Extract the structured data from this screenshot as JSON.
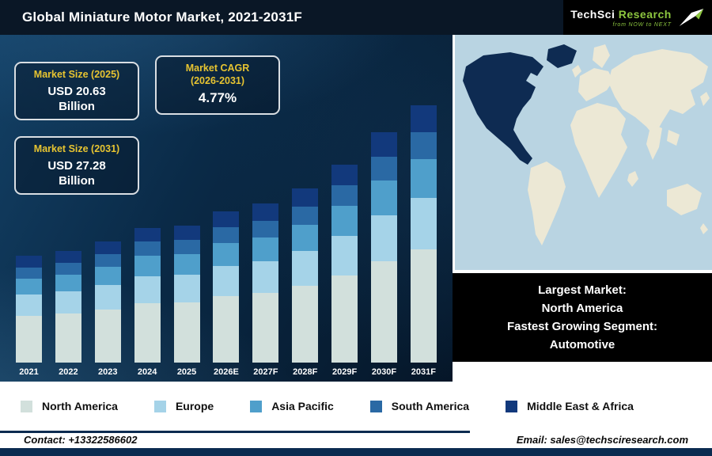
{
  "header": {
    "title": "Global Miniature Motor Market, 2021-2031F",
    "logo": {
      "brand_primary": "TechSci",
      "brand_secondary": " Research",
      "tagline": "from NOW to NEXT"
    }
  },
  "callouts": [
    {
      "title": "Market Size (2025)",
      "value": "USD 20.63",
      "unit": "Billion"
    },
    {
      "title_line1": "Market CAGR",
      "title_line2": "(2026-2031)",
      "value": "4.77%"
    },
    {
      "title": "Market Size (2031)",
      "value": "USD 27.28",
      "unit": "Billion"
    }
  ],
  "chart_data": {
    "type": "bar",
    "subtype": "stacked",
    "title": "Global Miniature Motor Market, 2021-2031F",
    "categories": [
      "2021",
      "2022",
      "2023",
      "2024",
      "2025",
      "2026E",
      "2027F",
      "2028F",
      "2029F",
      "2030F",
      "2031F"
    ],
    "series": [
      {
        "name": "North America",
        "color": "#d2e0dc",
        "values": [
          59,
          62,
          67,
          75,
          76,
          84,
          88,
          97,
          110,
          128,
          143
        ]
      },
      {
        "name": "Europe",
        "color": "#a5d3e8",
        "values": [
          27,
          28,
          31,
          34,
          35,
          38,
          40,
          44,
          50,
          58,
          65
        ]
      },
      {
        "name": "Asia Pacific",
        "color": "#4f9fcb",
        "values": [
          20,
          21,
          23,
          26,
          26,
          29,
          30,
          33,
          38,
          44,
          49
        ]
      },
      {
        "name": "South America",
        "color": "#2a69a4",
        "values": [
          14,
          15,
          16,
          18,
          18,
          20,
          21,
          23,
          26,
          30,
          34
        ]
      },
      {
        "name": "Middle East & Africa",
        "color": "#12397c",
        "values": [
          15,
          15,
          16,
          17,
          18,
          20,
          22,
          23,
          26,
          31,
          34
        ]
      }
    ],
    "units": "relative bar heights (no y-axis shown in figure)",
    "annotations": [
      "Market Size (2025): USD 20.63 Billion",
      "Market CAGR (2026-2031): 4.77%",
      "Market Size (2031): USD 27.28 Billion"
    ],
    "legend_position": "bottom",
    "grid": false,
    "ylim": [
      0,
      340
    ]
  },
  "map": {
    "highlight_region": "North America",
    "ocean_color": "#b9d4e2",
    "land_color": "#ece8d5",
    "highlight_color": "#0e2b52"
  },
  "info_box": {
    "lines": [
      "Largest Market:",
      "North America",
      "Fastest Growing Segment:",
      "Automotive"
    ]
  },
  "footer": {
    "contact": "Contact: +13322586602",
    "email": "Email: sales@techsciresearch.com"
  },
  "colors": {
    "header_bg": "#0a1726",
    "accent_yellow": "#e7c431",
    "bottom_bar": "#0b2b50",
    "logo_green": "#8dc63f"
  }
}
